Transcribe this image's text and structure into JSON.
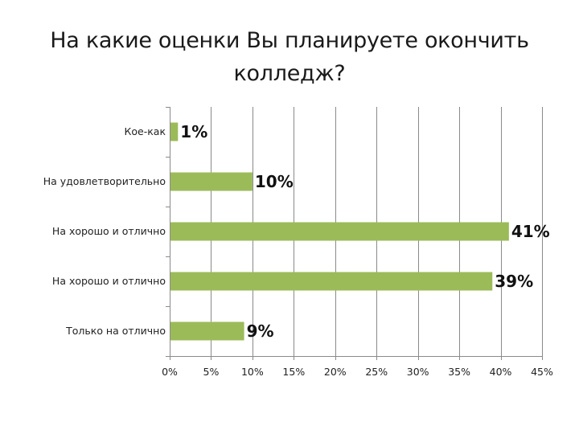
{
  "colors": {
    "bar": "#9BBB59",
    "grid": "#8a8a8a",
    "axis": "#8a8a8a",
    "text": "#222222"
  },
  "chart_data": {
    "type": "bar",
    "orientation": "horizontal",
    "title_lines": [
      "На какие оценки Вы планируете окончить",
      "колледж?"
    ],
    "categories": [
      "Кое-как",
      "На удовлетворительно",
      "На хорошо и отлично",
      "На хорошо и отлично",
      "Только на отлично"
    ],
    "values": [
      1,
      10,
      41,
      39,
      9
    ],
    "value_labels": [
      "1%",
      "10%",
      "41%",
      "39%",
      "9%"
    ],
    "xlim": [
      0,
      45
    ],
    "xticks": [
      0,
      5,
      10,
      15,
      20,
      25,
      30,
      35,
      40,
      45
    ],
    "xtick_labels": [
      "0%",
      "5%",
      "10%",
      "15%",
      "20%",
      "25%",
      "30%",
      "35%",
      "40%",
      "45%"
    ],
    "grid": true,
    "legend": "none"
  }
}
